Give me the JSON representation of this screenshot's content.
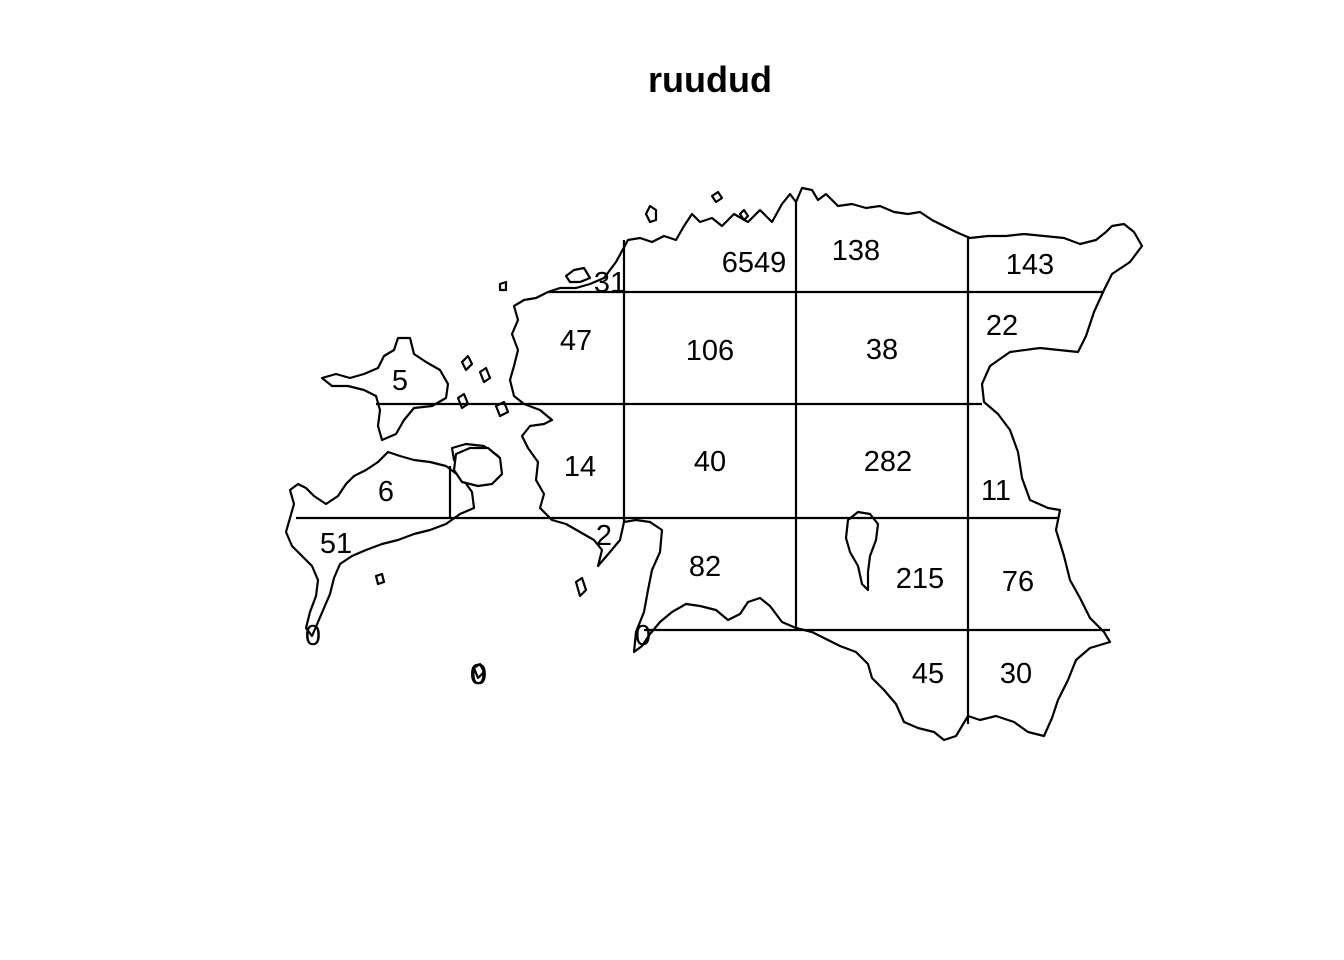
{
  "title": "ruudud",
  "cells": [
    {
      "label": "6549"
    },
    {
      "label": "138"
    },
    {
      "label": "143"
    },
    {
      "label": "31"
    },
    {
      "label": "47"
    },
    {
      "label": "106"
    },
    {
      "label": "38"
    },
    {
      "label": "22"
    },
    {
      "label": "5"
    },
    {
      "label": "14"
    },
    {
      "label": "40"
    },
    {
      "label": "282"
    },
    {
      "label": "11"
    },
    {
      "label": "6"
    },
    {
      "label": "51"
    },
    {
      "label": "2"
    },
    {
      "label": "82"
    },
    {
      "label": "215"
    },
    {
      "label": "76"
    },
    {
      "label": "0"
    },
    {
      "label": "0"
    },
    {
      "label": "0"
    },
    {
      "label": "0"
    },
    {
      "label": "45"
    },
    {
      "label": "30"
    }
  ]
}
